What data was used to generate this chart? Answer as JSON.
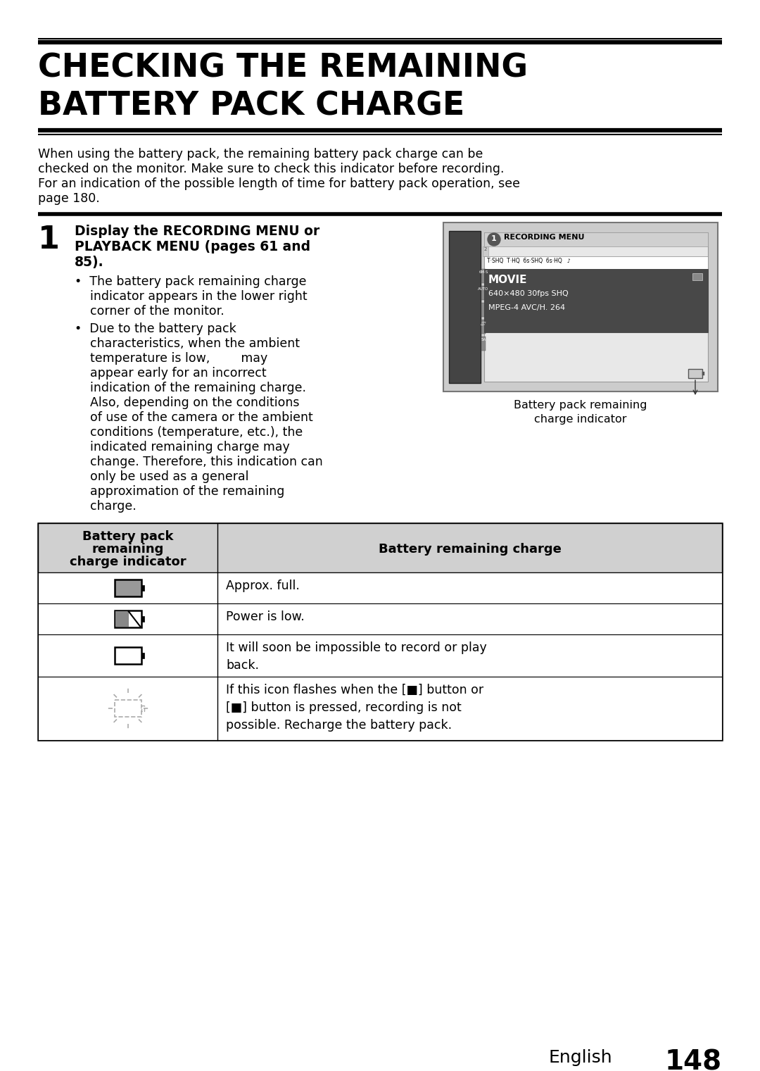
{
  "title_line1": "CHECKING THE REMAINING",
  "title_line2": "BATTERY PACK CHARGE",
  "intro_text": "When using the battery pack, the remaining battery pack charge can be\nchecked on the monitor. Make sure to check this indicator before recording.\nFor an indication of the possible length of time for battery pack operation, see\npage 180.",
  "step_number": "1",
  "bullet1_lines": [
    "•  The battery pack remaining charge",
    "    indicator appears in the lower right",
    "    corner of the monitor."
  ],
  "bullet2_lines": [
    "•  Due to the battery pack",
    "    characteristics, when the ambient",
    "    temperature is low,        may",
    "    appear early for an incorrect",
    "    indication of the remaining charge.",
    "    Also, depending on the conditions",
    "    of use of the camera or the ambient",
    "    conditions (temperature, etc.), the",
    "    indicated remaining charge may",
    "    change. Therefore, this indication can",
    "    only be used as a general",
    "    approximation of the remaining",
    "    charge."
  ],
  "caption_line1": "Battery pack remaining",
  "caption_line2": "charge indicator",
  "table_header_col1_lines": [
    "Battery pack",
    "remaining",
    "charge indicator"
  ],
  "table_header_col2": "Battery remaining charge",
  "table_rows_col2": [
    "Approx. full.",
    "Power is low.",
    "It will soon be impossible to record or play\nback.",
    "If this icon flashes when the [■] button or\n[■] button is pressed, recording is not\npossible. Recharge the battery pack."
  ],
  "footer_text": "English",
  "footer_number": "148",
  "bg_color": "#ffffff",
  "text_color": "#000000",
  "gray_bg": "#d0d0d0",
  "dark_gray": "#555555",
  "med_gray": "#888888",
  "cam_bg": "#cccccc"
}
